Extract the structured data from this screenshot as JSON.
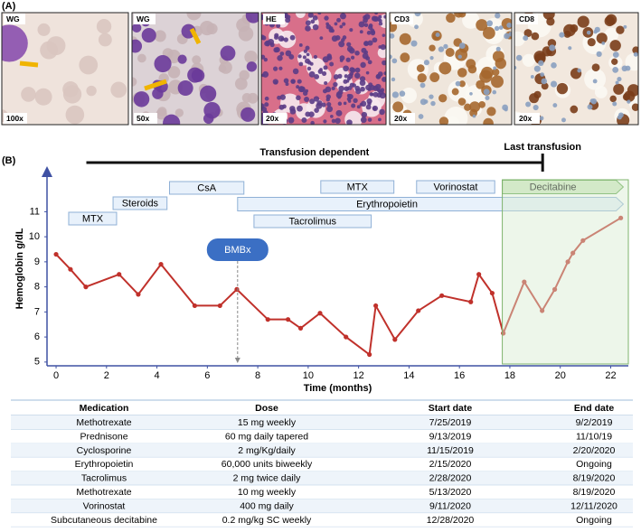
{
  "panel_a": {
    "label": "(A)",
    "images": [
      {
        "stain": "WG",
        "magnification": "100x"
      },
      {
        "stain": "WG",
        "magnification": "50x"
      },
      {
        "stain": "HE",
        "magnification": "20x"
      },
      {
        "stain": "CD3",
        "magnification": "20x"
      },
      {
        "stain": "CD8",
        "magnification": "20x"
      }
    ]
  },
  "panel_b_label": "(B)",
  "chart_data": {
    "type": "line",
    "y_label": "Hemoglobin g/dL",
    "x_label": "Time (months)",
    "x": [
      0,
      0.57,
      1.18,
      2.5,
      3.26,
      4.16,
      5.5,
      6.5,
      7.17,
      8.4,
      9.2,
      9.7,
      10.47,
      11.5,
      12.43,
      12.68,
      13.44,
      14.37,
      15.3,
      16.45,
      16.77,
      17.3,
      17.74,
      18.57,
      19.28,
      19.78,
      20.3,
      20.5,
      20.9,
      22.4
    ],
    "values": [
      9.3,
      8.7,
      8.0,
      8.5,
      7.7,
      8.9,
      7.25,
      7.25,
      7.9,
      6.7,
      6.7,
      6.35,
      6.95,
      6.0,
      5.3,
      7.25,
      5.9,
      7.05,
      7.65,
      7.4,
      8.5,
      7.75,
      6.15,
      8.2,
      7.05,
      7.9,
      9.0,
      9.35,
      9.85,
      10.75
    ],
    "color": "#c0312b",
    "xlim": [
      -0.36,
      22.7
    ],
    "xticks": [
      0,
      2,
      4,
      6,
      8,
      10,
      12,
      14,
      16,
      18,
      20,
      22
    ],
    "ylim": [
      4.85,
      12.6
    ],
    "yticks": [
      5,
      6,
      7,
      8,
      9,
      10,
      11
    ],
    "annotations": [
      {
        "label": "MTX",
        "start": 0.5,
        "end": 2.4,
        "color": "#e8f1fb"
      },
      {
        "label": "Steroids",
        "start": 2.26,
        "end": 4.4,
        "color": "#e8f1fb"
      },
      {
        "label": "CsA",
        "start": 4.5,
        "end": 7.45,
        "color": "#e8f1fb"
      },
      {
        "label": "Erythropoietin",
        "start": 7.2,
        "end": 22.5,
        "color": "#e8f1fb",
        "arrow": true
      },
      {
        "label": "Tacrolimus",
        "start": 7.85,
        "end": 12.5,
        "color": "#e8f1fb"
      },
      {
        "label": "MTX",
        "start": 10.5,
        "end": 13.4,
        "color": "#e8f1fb"
      },
      {
        "label": "Vorinostat",
        "start": 14.3,
        "end": 17.4,
        "color": "#e8f1fb"
      },
      {
        "label": "Decitabine",
        "start": 17.7,
        "end": 22.5,
        "color": "#cfe8c2",
        "arrow": true
      }
    ],
    "transfusion": {
      "label": "Transfusion dependent",
      "start": 1.2,
      "end": 19.3,
      "end_label": "Last transfusion"
    },
    "biopsy": {
      "label": "BMBx",
      "x": 7.2
    }
  },
  "table": {
    "header": [
      "Medication",
      "Dose",
      "Start date",
      "End date"
    ],
    "rows": [
      [
        "Methotrexate",
        "15 mg weekly",
        "7/25/2019",
        "9/2/2019"
      ],
      [
        "Prednisone",
        "60 mg daily tapered",
        "9/13/2019",
        "11/10/19"
      ],
      [
        "Cyclosporine",
        "2 mg/Kg/daily",
        "11/15/2019",
        "2/20/2020"
      ],
      [
        "Erythropoietin",
        "60,000 units biweekly",
        "2/15/2020",
        "Ongoing"
      ],
      [
        "Tacrolimus",
        "2 mg twice daily",
        "2/28/2020",
        "8/19/2020"
      ],
      [
        "Methotrexate",
        "10 mg weekly",
        "5/13/2020",
        "8/19/2020"
      ],
      [
        "Vorinostat",
        "400 mg daily",
        "9/11/2020",
        "12/11/2020"
      ],
      [
        "Subcutaneous decitabine",
        "0.2 mg/kg SC weekly",
        "12/28/2020",
        "Ongoing"
      ]
    ]
  }
}
